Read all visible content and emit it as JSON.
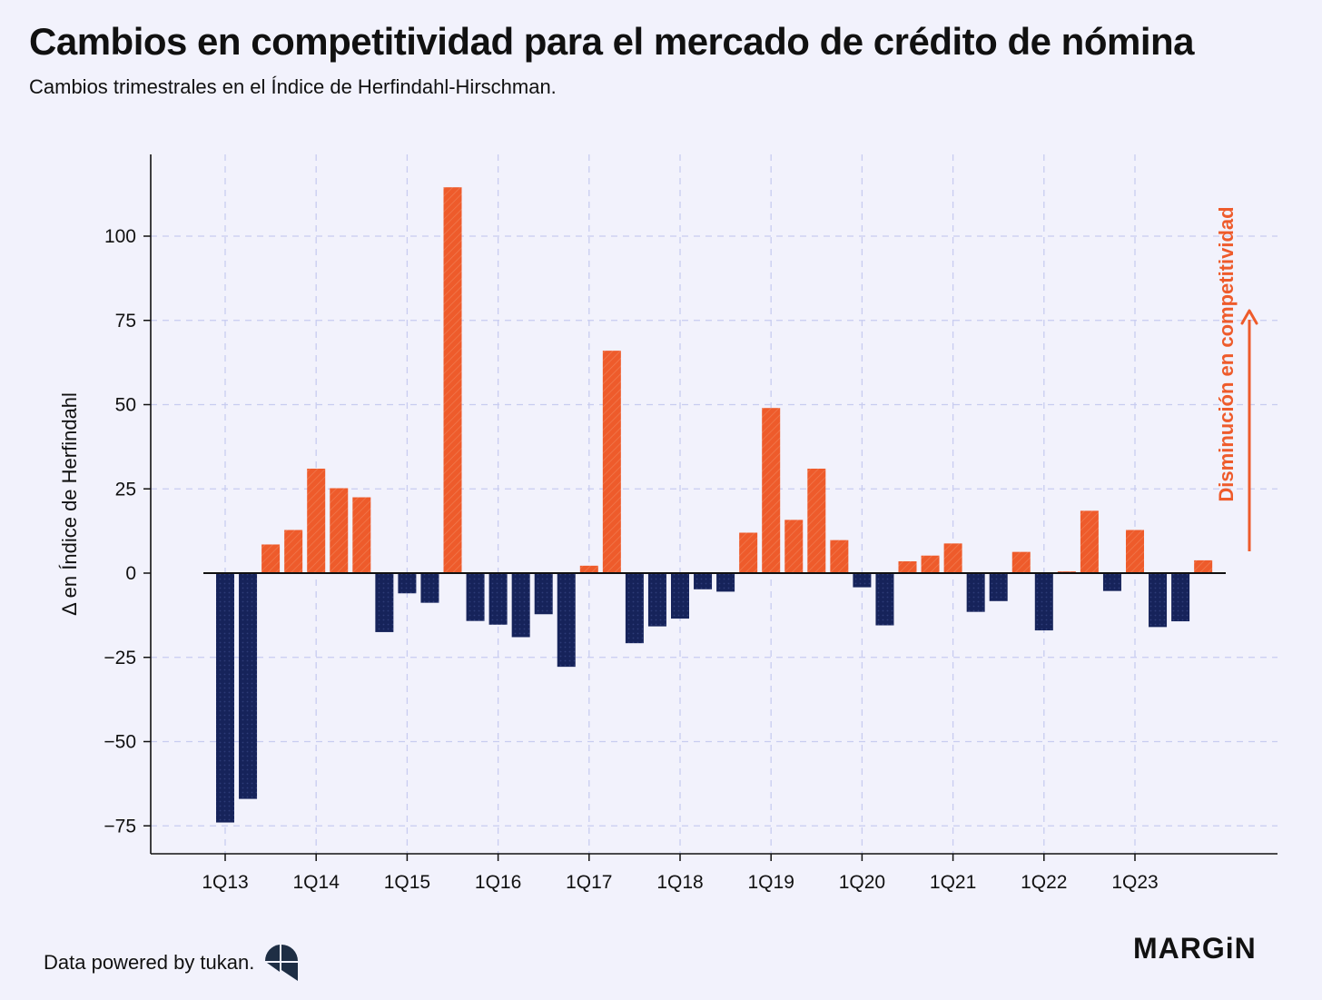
{
  "header": {
    "title": "Cambios en competitividad para el mercado de crédito de nómina",
    "subtitle": "Cambios trimestrales en el Índice de Herfindahl-Hirschman."
  },
  "footer": {
    "source": "Data powered by tukan.",
    "brand": "MARGiN"
  },
  "colors": {
    "positive": "#EE5B2B",
    "negative": "#16235A",
    "background": "#F2F2FC",
    "grid": "#C8CCF0"
  },
  "chart_data": {
    "type": "bar",
    "title": "Cambios en competitividad para el mercado de crédito de nómina",
    "subtitle": "Cambios trimestrales en el Índice de Herfindahl-Hirschman.",
    "xlabel": "",
    "ylabel": "Δ en Índice de Herfindahl",
    "ylim": [
      -83,
      124
    ],
    "yticks": [
      -75,
      -50,
      -25,
      0,
      25,
      50,
      75,
      100
    ],
    "ytick_labels": [
      "−75",
      "−50",
      "−25",
      "0",
      "25",
      "50",
      "75",
      "100"
    ],
    "xtick_labels": [
      "1Q13",
      "1Q14",
      "1Q15",
      "1Q16",
      "1Q17",
      "1Q18",
      "1Q19",
      "1Q20",
      "1Q21",
      "1Q22",
      "1Q23"
    ],
    "grid": true,
    "annotation": "Disminución en competitividad",
    "categories": [
      "1Q13",
      "2Q13",
      "3Q13",
      "4Q13",
      "1Q14",
      "2Q14",
      "3Q14",
      "4Q14",
      "1Q15",
      "2Q15",
      "3Q15",
      "4Q15",
      "1Q16",
      "2Q16",
      "3Q16",
      "4Q16",
      "1Q17",
      "2Q17",
      "3Q17",
      "4Q17",
      "1Q18",
      "2Q18",
      "3Q18",
      "4Q18",
      "1Q19",
      "2Q19",
      "3Q19",
      "4Q19",
      "1Q20",
      "2Q20",
      "3Q20",
      "4Q20",
      "1Q21",
      "2Q21",
      "3Q21",
      "4Q21",
      "1Q22",
      "2Q22",
      "3Q22",
      "4Q22",
      "1Q23",
      "2Q23",
      "3Q23",
      "4Q23"
    ],
    "values": [
      -74,
      -67,
      8.5,
      12.8,
      31,
      25.2,
      22.5,
      -17.5,
      -6,
      -8.8,
      114.5,
      -14.2,
      -15.3,
      -19,
      -12.2,
      -27.8,
      2.2,
      66,
      -20.8,
      -15.8,
      -13.5,
      -4.8,
      -5.5,
      12,
      49,
      15.8,
      31,
      9.8,
      -4.2,
      -15.5,
      3.5,
      5.2,
      8.8,
      -11.5,
      -8.3,
      6.3,
      -17,
      0.5,
      18.5,
      -5.3,
      12.8,
      -16,
      -14.3,
      3.8
    ]
  }
}
